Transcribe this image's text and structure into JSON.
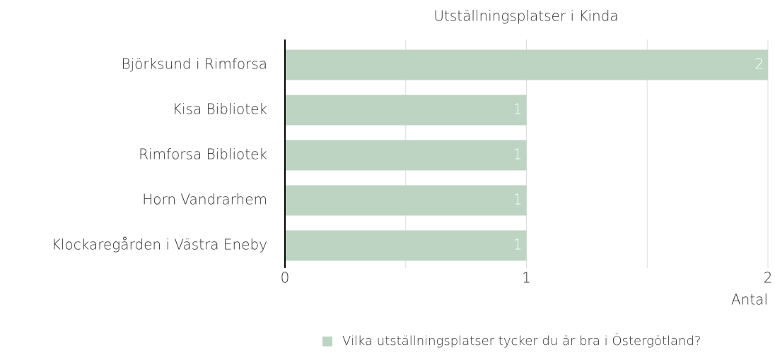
{
  "chart_data": {
    "type": "bar",
    "orientation": "horizontal",
    "title": "Utställningsplatser i Kinda",
    "categories": [
      "Björksund i Rimforsa",
      "Kisa Bibliotek",
      "Rimforsa Bibliotek",
      "Horn Vandrarhem",
      "Klockaregården i Västra Eneby"
    ],
    "series": [
      {
        "name": "Vilka utställningsplatser tycker du är bra i Östergötland?",
        "color": "#bdd4c3",
        "values": [
          2,
          1,
          1,
          1,
          1
        ]
      }
    ],
    "xlabel": "Antal",
    "xlim": [
      0,
      2
    ],
    "xticks": [
      0,
      1,
      2
    ],
    "minor_grid": [
      0.5,
      1.5
    ],
    "grid": true,
    "legend": "bottom"
  }
}
